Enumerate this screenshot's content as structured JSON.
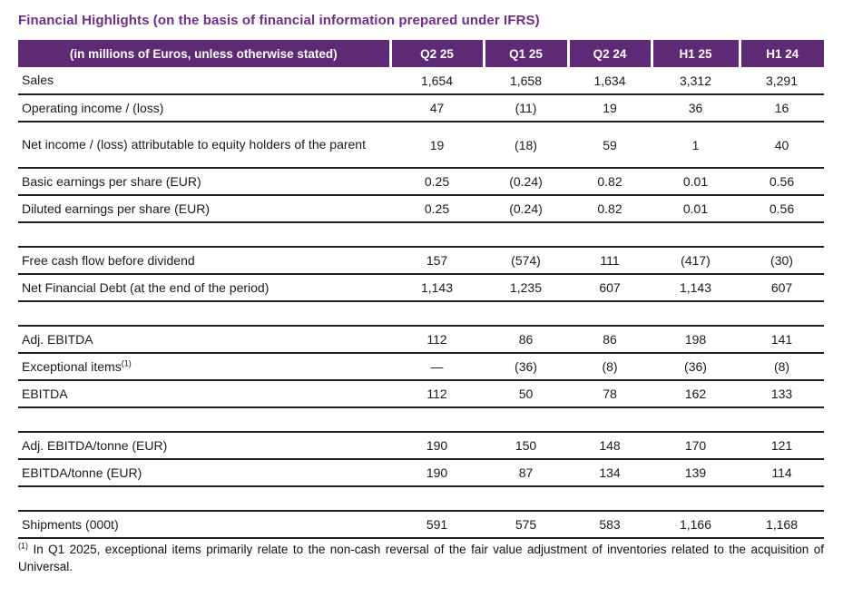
{
  "page": {
    "title": "Financial Highlights (on the basis of financial information prepared under IFRS)"
  },
  "colors": {
    "title_purple": "#6d2e87",
    "header_purple": "#5e2a76",
    "rule_black": "#1f1f1f"
  },
  "table": {
    "header": [
      "(in millions of Euros, unless otherwise stated)",
      "Q2 25",
      "Q1 25",
      "Q2 24",
      "H1 25",
      "H1 24"
    ],
    "rows": [
      {
        "label": "Sales",
        "values": [
          "1,654",
          "1,658",
          "1,634",
          "3,312",
          "3,291"
        ]
      },
      {
        "label": "Operating income / (loss)",
        "values": [
          "47",
          "(11)",
          "19",
          "36",
          "16"
        ]
      },
      {
        "label": "Net income / (loss) attributable to equity holders of the parent",
        "tall": true,
        "values": [
          "19",
          "(18)",
          "59",
          "1",
          "40"
        ]
      },
      {
        "label": "Basic earnings per share (EUR)",
        "values": [
          "0.25",
          "(0.24)",
          "0.82",
          "0.01",
          "0.56"
        ]
      },
      {
        "label": "Diluted earnings per share (EUR)",
        "values": [
          "0.25",
          "(0.24)",
          "0.82",
          "0.01",
          "0.56"
        ]
      },
      {
        "spacer": true
      },
      {
        "label": "Free cash flow before dividend",
        "values": [
          "157",
          "(574)",
          "111",
          "(417)",
          "(30)"
        ]
      },
      {
        "label": "Net Financial Debt (at the end of the period)",
        "values": [
          "1,143",
          "1,235",
          "607",
          "1,143",
          "607"
        ]
      },
      {
        "spacer": true
      },
      {
        "label": "Adj. EBITDA",
        "values": [
          "112",
          "86",
          "86",
          "198",
          "141"
        ]
      },
      {
        "label": "Exceptional items",
        "label_sup": "(1)",
        "values": [
          "—",
          "(36)",
          "(8)",
          "(36)",
          "(8)"
        ]
      },
      {
        "label": "EBITDA",
        "values": [
          "112",
          "50",
          "78",
          "162",
          "133"
        ]
      },
      {
        "spacer": true
      },
      {
        "label": "Adj. EBITDA/tonne (EUR)",
        "values": [
          "190",
          "150",
          "148",
          "170",
          "121"
        ]
      },
      {
        "label": "EBITDA/tonne (EUR)",
        "values": [
          "190",
          "87",
          "134",
          "139",
          "114"
        ]
      },
      {
        "spacer": true
      },
      {
        "label": "Shipments (000t)",
        "values": [
          "591",
          "575",
          "583",
          "1,166",
          "1,168"
        ]
      }
    ]
  },
  "footnote": {
    "marker": "(1)",
    "text": "In Q1 2025, exceptional items primarily relate to the non-cash reversal of the fair value adjustment of inventories related to the acquisition of Universal."
  }
}
